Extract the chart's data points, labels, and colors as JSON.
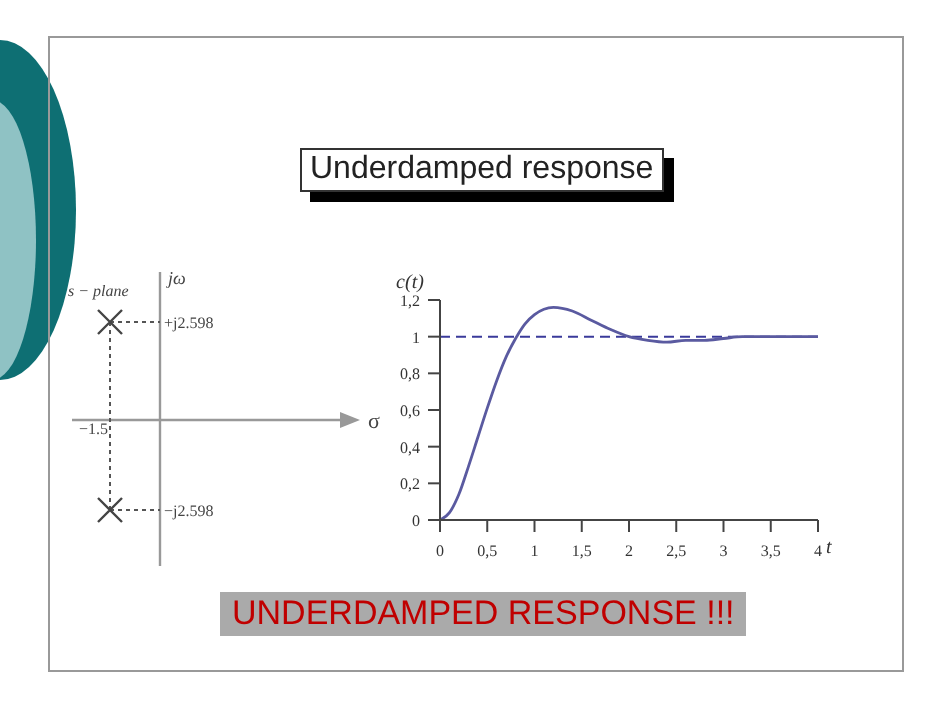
{
  "chart_data": [
    {
      "type": "other",
      "xlabel": "σ",
      "ylabel": "jω",
      "annotations": [
        "s − plane",
        "−1.5",
        "+j2.598",
        "−j2.598"
      ]
    },
    {
      "type": "line",
      "title": "Underdamped response",
      "annotations": [
        "UNDERDAMPED RESPONSE !!!"
      ],
      "xlabel": "t",
      "ylabel": "c(t)",
      "grid": false,
      "marker": "none",
      "line_style": "solid",
      "x": [
        0,
        0.1,
        0.2,
        0.3,
        0.4,
        0.5,
        0.6,
        0.7,
        0.8,
        0.9,
        1.0,
        1.2,
        1.4,
        1.6,
        1.8,
        2.0,
        2.2,
        2.4,
        2.6,
        2.8,
        3.0,
        3.2,
        3.4,
        3.6,
        3.8,
        4.0
      ],
      "series": [
        {
          "color": "#5a5aa0",
          "values": [
            0,
            0.04,
            0.14,
            0.29,
            0.45,
            0.61,
            0.76,
            0.89,
            0.99,
            1.07,
            1.12,
            1.16,
            1.14,
            1.09,
            1.04,
            1.0,
            0.98,
            0.97,
            0.98,
            0.98,
            0.99,
            1.0,
            1.0,
            1.0,
            1.0,
            1.0
          ]
        }
      ],
      "ref_lines": [
        {
          "axis": "y",
          "value": 1,
          "color": "#3a3a9a",
          "line_style": "dashed"
        }
      ],
      "xlim": [
        0,
        4
      ],
      "xticks": [
        0,
        {
          "value": 0.5,
          "label": "0,5"
        },
        1,
        {
          "value": 1.5,
          "label": "1,5"
        },
        2,
        {
          "value": 2.5,
          "label": "2,5"
        },
        3,
        {
          "value": 3.5,
          "label": "3,5"
        },
        4
      ],
      "ylim": [
        0,
        1.2
      ],
      "yticks": [
        0,
        {
          "value": 0.2,
          "label": "0,2"
        },
        {
          "value": 0.4,
          "label": "0,4"
        },
        {
          "value": 0.6,
          "label": "0,6"
        },
        {
          "value": 0.8,
          "label": "0,8"
        },
        1,
        {
          "value": 1.2,
          "label": "1,2"
        }
      ]
    }
  ]
}
